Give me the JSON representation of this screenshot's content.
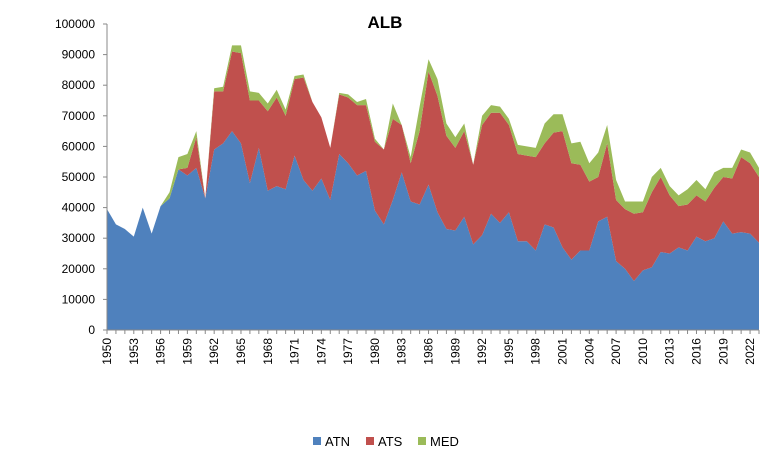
{
  "chart_data": {
    "type": "area",
    "stacked": true,
    "title": "ALB",
    "xlabel": "",
    "ylabel": "",
    "ylim": [
      0,
      100000
    ],
    "yticks": [
      "0",
      "10000",
      "20000",
      "30000",
      "40000",
      "50000",
      "60000",
      "70000",
      "80000",
      "90000",
      "100000"
    ],
    "xtick_labels": [
      "1950",
      "1953",
      "1956",
      "1959",
      "1962",
      "1965",
      "1968",
      "1971",
      "1974",
      "1977",
      "1980",
      "1983",
      "1986",
      "1989",
      "1992",
      "1995",
      "1998",
      "2001",
      "2004",
      "2007",
      "2010",
      "2013",
      "2016",
      "2019",
      "2022"
    ],
    "grid": false,
    "legend_position": "bottom",
    "x": [
      1950,
      1951,
      1952,
      1953,
      1954,
      1955,
      1956,
      1957,
      1958,
      1959,
      1960,
      1961,
      1962,
      1963,
      1964,
      1965,
      1966,
      1967,
      1968,
      1969,
      1970,
      1971,
      1972,
      1973,
      1974,
      1975,
      1976,
      1977,
      1978,
      1979,
      1980,
      1981,
      1982,
      1983,
      1984,
      1985,
      1986,
      1987,
      1988,
      1989,
      1990,
      1991,
      1992,
      1993,
      1994,
      1995,
      1996,
      1997,
      1998,
      1999,
      2000,
      2001,
      2002,
      2003,
      2004,
      2005,
      2006,
      2007,
      2008,
      2009,
      2010,
      2011,
      2012,
      2013,
      2014,
      2015,
      2016,
      2017,
      2018,
      2019,
      2020,
      2021,
      2022,
      2023
    ],
    "series": [
      {
        "name": "ATN",
        "color": "#4F81BD",
        "values": [
          39500,
          34500,
          33000,
          30500,
          40000,
          31500,
          40500,
          43000,
          52500,
          50500,
          53000,
          43000,
          59000,
          61000,
          65000,
          61000,
          48000,
          59500,
          45500,
          47000,
          46000,
          57000,
          49000,
          45500,
          49500,
          42500,
          57500,
          54500,
          50500,
          52000,
          39000,
          34500,
          42500,
          51500,
          42000,
          41000,
          47500,
          38500,
          33000,
          32500,
          37000,
          28000,
          31000,
          38000,
          35000,
          38500,
          29000,
          29000,
          26000,
          34500,
          33500,
          27000,
          23000,
          26000,
          26000,
          35500,
          37000,
          22500,
          20000,
          16000,
          19500,
          20500,
          25500,
          25000,
          27000,
          26000,
          30500,
          29000,
          30000,
          35500,
          31500,
          32000,
          31500,
          28500
        ]
      },
      {
        "name": "ATS",
        "color": "#C0504D",
        "values": [
          0,
          0,
          0,
          0,
          0,
          0,
          0,
          0,
          0,
          2500,
          10000,
          0,
          19000,
          17000,
          26000,
          29500,
          27000,
          15500,
          26000,
          29000,
          24000,
          25000,
          33500,
          29000,
          20000,
          17000,
          19500,
          21500,
          23000,
          21500,
          22500,
          24500,
          26500,
          15500,
          12500,
          24000,
          37000,
          38000,
          30500,
          27000,
          28000,
          26000,
          36000,
          33000,
          36000,
          28500,
          28500,
          28000,
          30500,
          26500,
          31000,
          38000,
          31500,
          28000,
          22500,
          14500,
          24000,
          20000,
          19500,
          22000,
          19000,
          24500,
          24500,
          19000,
          13500,
          15000,
          13500,
          13000,
          16500,
          14500,
          18000,
          24500,
          23000,
          21500
        ]
      },
      {
        "name": "MED",
        "color": "#9BBB59",
        "values": [
          0,
          0,
          0,
          0,
          0,
          0,
          0,
          2000,
          4000,
          4500,
          2000,
          0,
          1000,
          1500,
          2000,
          2500,
          3000,
          2500,
          2500,
          2500,
          2000,
          1000,
          1000,
          0,
          0,
          0,
          500,
          1000,
          1000,
          2000,
          1000,
          0,
          5000,
          0,
          2000,
          8000,
          4000,
          5500,
          4000,
          3500,
          2500,
          0,
          3000,
          2500,
          2000,
          2000,
          3000,
          3000,
          3000,
          6500,
          6000,
          5500,
          6500,
          7500,
          6000,
          8000,
          6000,
          6500,
          2500,
          4000,
          3500,
          5000,
          3000,
          3000,
          3500,
          5000,
          5000,
          4000,
          5000,
          3000,
          3500,
          2500,
          3500,
          3000
        ]
      }
    ]
  }
}
